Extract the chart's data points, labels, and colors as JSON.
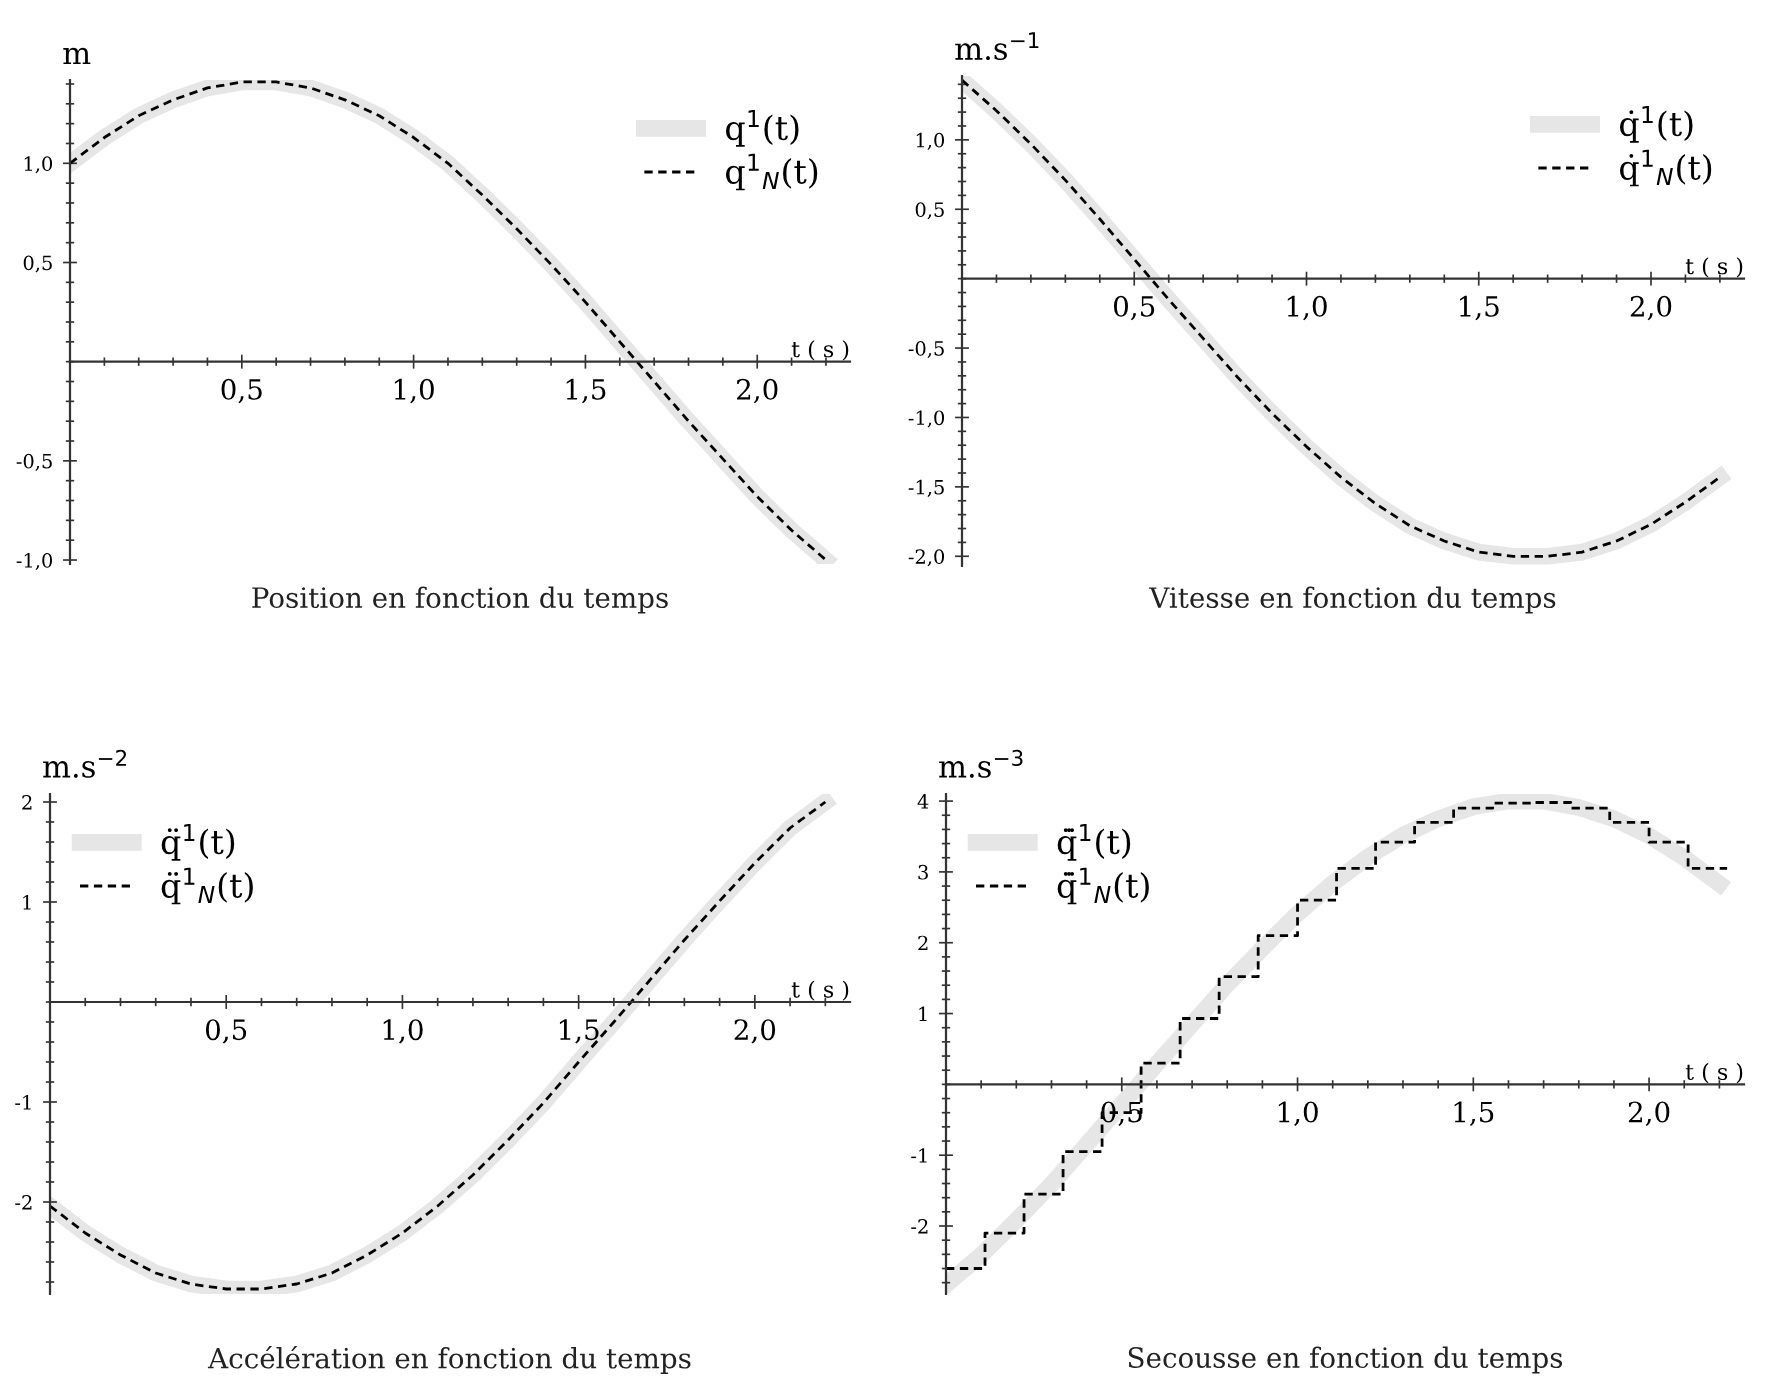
{
  "chart_data": [
    {
      "type": "line",
      "title": "Position en fonction du temps",
      "ylabel": "m",
      "xlabel": "t ( s )",
      "xlim": [
        0,
        2.27
      ],
      "ylim": [
        -1.02,
        1.42
      ],
      "xticks": [
        {
          "value": 0.5,
          "label": "0,5"
        },
        {
          "value": 1.0,
          "label": "1,0"
        },
        {
          "value": 1.5,
          "label": "1,5"
        },
        {
          "value": 2.0,
          "label": "2,0"
        }
      ],
      "yticks": [
        {
          "value": -1.0,
          "label": "-1,0"
        },
        {
          "value": -0.5,
          "label": "-0,5"
        },
        {
          "value": 0.5,
          "label": "0,5"
        },
        {
          "value": 1.0,
          "label": "1,0"
        }
      ],
      "legend": "top right",
      "grid": false,
      "x": [
        0,
        0.1,
        0.2,
        0.3,
        0.4,
        0.5,
        0.6,
        0.7,
        0.8,
        0.9,
        1.0,
        1.1,
        1.2,
        1.3,
        1.4,
        1.5,
        1.6,
        1.7,
        1.8,
        1.9,
        2.0,
        2.1,
        2.2
      ],
      "series": [
        {
          "name": "q$^{1}$(t)",
          "color": "#e6e6e6",
          "line_style": "solid",
          "values": [
            1.0,
            1.13,
            1.24,
            1.32,
            1.38,
            1.41,
            1.41,
            1.38,
            1.32,
            1.24,
            1.13,
            1.0,
            0.84,
            0.67,
            0.49,
            0.3,
            0.1,
            -0.1,
            -0.3,
            -0.49,
            -0.68,
            -0.85,
            -1.0
          ]
        },
        {
          "name": "q$^{1}$$_{N}$(t)",
          "color": "#000000",
          "line_style": "dashed",
          "values": [
            1.0,
            1.13,
            1.24,
            1.32,
            1.38,
            1.41,
            1.41,
            1.38,
            1.32,
            1.24,
            1.13,
            1.0,
            0.84,
            0.67,
            0.49,
            0.3,
            0.1,
            -0.1,
            -0.3,
            -0.49,
            -0.68,
            -0.85,
            -1.0
          ]
        }
      ]
    },
    {
      "type": "line",
      "title": "Vitesse en fonction du temps",
      "ylabel": "m.s$^{−1}$",
      "xlabel": "t ( s )",
      "xlim": [
        0,
        2.27
      ],
      "ylim": [
        -2.07,
        1.46
      ],
      "xticks": [
        {
          "value": 0.5,
          "label": "0,5"
        },
        {
          "value": 1.0,
          "label": "1,0"
        },
        {
          "value": 1.5,
          "label": "1,5"
        },
        {
          "value": 2.0,
          "label": "2,0"
        }
      ],
      "yticks": [
        {
          "value": -2.0,
          "label": "-2,0"
        },
        {
          "value": -1.5,
          "label": "-1,5"
        },
        {
          "value": -1.0,
          "label": "-1,0"
        },
        {
          "value": -0.5,
          "label": "-0,5"
        },
        {
          "value": 0.5,
          "label": "0,5"
        },
        {
          "value": 1.0,
          "label": "1,0"
        }
      ],
      "legend": "top right",
      "grid": false,
      "x": [
        0,
        0.1,
        0.2,
        0.3,
        0.4,
        0.5,
        0.6,
        0.7,
        0.8,
        0.9,
        1.0,
        1.1,
        1.2,
        1.3,
        1.4,
        1.5,
        1.6,
        1.7,
        1.8,
        1.9,
        2.0,
        2.1,
        2.2
      ],
      "series": [
        {
          "name": "q̇$^{1}$(t)",
          "color": "#e6e6e6",
          "line_style": "solid",
          "values": [
            1.43,
            1.21,
            0.97,
            0.71,
            0.43,
            0.14,
            -0.15,
            -0.43,
            -0.71,
            -0.97,
            -1.21,
            -1.43,
            -1.62,
            -1.78,
            -1.89,
            -1.97,
            -2.0,
            -2.0,
            -1.97,
            -1.89,
            -1.77,
            -1.61,
            -1.43
          ]
        },
        {
          "name": "q̇$^{1}$$_{N}$(t)",
          "color": "#000000",
          "line_style": "dashed",
          "values": [
            1.43,
            1.21,
            0.97,
            0.71,
            0.43,
            0.14,
            -0.15,
            -0.43,
            -0.71,
            -0.97,
            -1.21,
            -1.43,
            -1.62,
            -1.78,
            -1.89,
            -1.97,
            -2.0,
            -2.0,
            -1.97,
            -1.89,
            -1.77,
            -1.61,
            -1.43
          ]
        }
      ]
    },
    {
      "type": "line",
      "title": "Accélération en fonction du temps",
      "ylabel": "m.s$^{−2}$",
      "xlabel": "t ( s )",
      "xlim": [
        0,
        2.27
      ],
      "ylim": [
        -2.92,
        2.08
      ],
      "xticks": [
        {
          "value": 0.5,
          "label": "0,5"
        },
        {
          "value": 1.0,
          "label": "1,0"
        },
        {
          "value": 1.5,
          "label": "1,5"
        },
        {
          "value": 2.0,
          "label": "2,0"
        }
      ],
      "yticks": [
        -2,
        -1,
        1,
        2
      ],
      "legend": "top left",
      "grid": false,
      "x": [
        0,
        0.1,
        0.2,
        0.3,
        0.4,
        0.5,
        0.6,
        0.7,
        0.8,
        0.9,
        1.0,
        1.1,
        1.2,
        1.3,
        1.4,
        1.5,
        1.6,
        1.7,
        1.8,
        1.9,
        2.0,
        2.1,
        2.2
      ],
      "series": [
        {
          "name": "q̈$^{1}$(t)",
          "color": "#e6e6e6",
          "line_style": "solid",
          "values": [
            -2.04,
            -2.31,
            -2.53,
            -2.71,
            -2.82,
            -2.87,
            -2.87,
            -2.82,
            -2.71,
            -2.53,
            -2.31,
            -2.04,
            -1.73,
            -1.38,
            -1.01,
            -0.6,
            -0.2,
            0.21,
            0.62,
            1.01,
            1.39,
            1.74,
            2.0
          ]
        },
        {
          "name": "q̈$^{1}$$_{N}$(t)",
          "color": "#000000",
          "line_style": "dashed",
          "values": [
            -2.04,
            -2.31,
            -2.53,
            -2.71,
            -2.82,
            -2.87,
            -2.87,
            -2.82,
            -2.71,
            -2.53,
            -2.31,
            -2.04,
            -1.73,
            -1.38,
            -1.01,
            -0.6,
            -0.2,
            0.21,
            0.62,
            1.01,
            1.39,
            1.74,
            2.0
          ]
        }
      ]
    },
    {
      "type": "line",
      "title": "Secousse en fonction du temps",
      "ylabel": "m.s$^{−3}$",
      "xlabel": "t ( s )",
      "xlim": [
        0,
        2.27
      ],
      "ylim": [
        -2.96,
        4.1
      ],
      "xticks": [
        {
          "value": 0.5,
          "label": "0,5"
        },
        {
          "value": 1.0,
          "label": "1,0"
        },
        {
          "value": 1.5,
          "label": "1,5"
        },
        {
          "value": 2.0,
          "label": "2,0"
        }
      ],
      "yticks": [
        -2,
        -1,
        1,
        2,
        3,
        4
      ],
      "legend": "top left",
      "grid": false,
      "series": [
        {
          "name": "q̈̇$^{1}$(t)",
          "color": "#e6e6e6",
          "line_style": "solid",
          "x": [
            0,
            0.1,
            0.2,
            0.3,
            0.4,
            0.5,
            0.6,
            0.7,
            0.8,
            0.9,
            1.0,
            1.1,
            1.2,
            1.3,
            1.4,
            1.5,
            1.6,
            1.7,
            1.8,
            1.9,
            2.0,
            2.1,
            2.2
          ],
          "values": [
            -2.83,
            -2.41,
            -1.92,
            -1.41,
            -0.85,
            -0.28,
            0.29,
            0.85,
            1.41,
            1.92,
            2.41,
            2.84,
            3.21,
            3.52,
            3.75,
            3.92,
            4.0,
            4.0,
            3.91,
            3.75,
            3.51,
            3.2,
            2.83
          ]
        },
        {
          "name": "q̈̇$^{1}$$_{N}$(t)",
          "type": "step",
          "color": "#000000",
          "line_style": "dashed",
          "x": [
            0,
            0.111,
            0.222,
            0.333,
            0.444,
            0.555,
            0.666,
            0.777,
            0.888,
            1.0,
            1.111,
            1.222,
            1.333,
            1.444,
            1.555,
            1.666,
            1.777,
            1.888,
            2.0,
            2.111,
            2.222
          ],
          "values": [
            -2.6,
            -2.1,
            -1.55,
            -0.95,
            -0.4,
            0.3,
            0.93,
            1.52,
            2.1,
            2.6,
            3.05,
            3.42,
            3.7,
            3.9,
            3.97,
            3.98,
            3.9,
            3.7,
            3.42,
            3.05,
            3.05
          ]
        }
      ]
    }
  ]
}
